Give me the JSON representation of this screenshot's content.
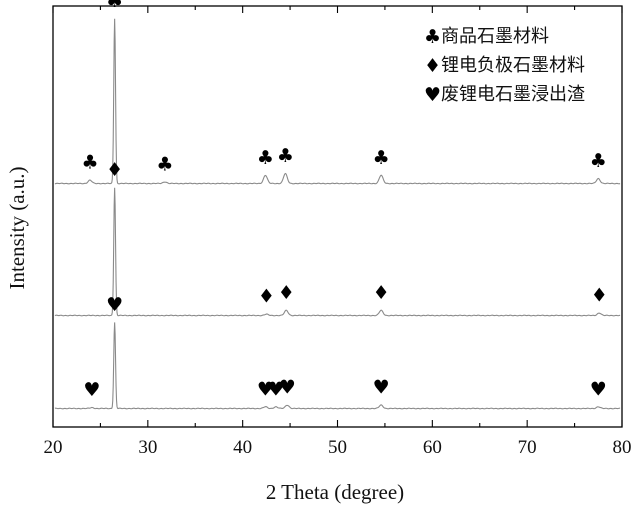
{
  "chart_data": {
    "type": "line",
    "title": "",
    "xlabel": "2 Theta (degree)",
    "ylabel": "Intensity (a.u.)",
    "xlim": [
      20,
      80
    ],
    "xticks": [
      "20",
      "30",
      "40",
      "50",
      "60",
      "70",
      "80"
    ],
    "y_ticks_shown": false,
    "grid": false,
    "legend_position": "top-right",
    "series": [
      {
        "name": "商品石墨材料",
        "marker": "♣",
        "color": "#8a8a8a",
        "peaks": [
          {
            "x": 23.9,
            "intensity": 0.02
          },
          {
            "x": 26.5,
            "intensity": 1.0
          },
          {
            "x": 31.8,
            "intensity": 0.01
          },
          {
            "x": 42.4,
            "intensity": 0.05
          },
          {
            "x": 44.5,
            "intensity": 0.06
          },
          {
            "x": 54.6,
            "intensity": 0.05
          },
          {
            "x": 77.5,
            "intensity": 0.03
          }
        ]
      },
      {
        "name": "锂电负极石墨材料",
        "marker": "♦",
        "color": "#8a8a8a",
        "peaks": [
          {
            "x": 26.5,
            "intensity": 1.0
          },
          {
            "x": 42.5,
            "intensity": 0.01
          },
          {
            "x": 44.6,
            "intensity": 0.04
          },
          {
            "x": 54.6,
            "intensity": 0.04
          },
          {
            "x": 77.6,
            "intensity": 0.02
          }
        ]
      },
      {
        "name": "废锂电石墨浸出渣",
        "marker": "♥",
        "color": "#8a8a8a",
        "peaks": [
          {
            "x": 24.1,
            "intensity": 0.01
          },
          {
            "x": 26.5,
            "intensity": 1.0
          },
          {
            "x": 42.4,
            "intensity": 0.02
          },
          {
            "x": 43.5,
            "intensity": 0.02
          },
          {
            "x": 44.7,
            "intensity": 0.04
          },
          {
            "x": 54.6,
            "intensity": 0.04
          },
          {
            "x": 77.5,
            "intensity": 0.02
          }
        ]
      }
    ]
  }
}
